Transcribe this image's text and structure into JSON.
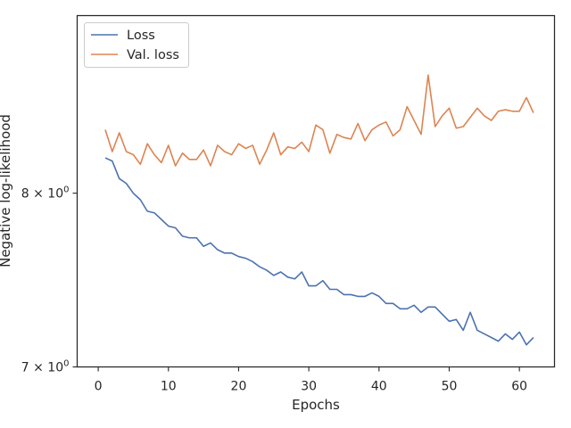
{
  "chart_data": {
    "type": "line",
    "title": "",
    "xlabel": "Epochs",
    "ylabel": "Negative log-likelihood",
    "yscale": "log",
    "xlim": [
      -3,
      65
    ],
    "ylim": [
      7.0,
      9.17
    ],
    "x_ticks": [
      {
        "value": 0,
        "label": "0"
      },
      {
        "value": 10,
        "label": "10"
      },
      {
        "value": 20,
        "label": "20"
      },
      {
        "value": 30,
        "label": "30"
      },
      {
        "value": 40,
        "label": "40"
      },
      {
        "value": 50,
        "label": "50"
      },
      {
        "value": 60,
        "label": "60"
      }
    ],
    "y_ticks": [
      {
        "value": 7,
        "base": "7 × 10",
        "exp": "0"
      },
      {
        "value": 8,
        "base": "8 × 10",
        "exp": "0"
      }
    ],
    "grid": false,
    "legend_position": "upper-left",
    "x": [
      1,
      2,
      3,
      4,
      5,
      6,
      7,
      8,
      9,
      10,
      11,
      12,
      13,
      14,
      15,
      16,
      17,
      18,
      19,
      20,
      21,
      22,
      23,
      24,
      25,
      26,
      27,
      28,
      29,
      30,
      31,
      32,
      33,
      34,
      35,
      36,
      37,
      38,
      39,
      40,
      41,
      42,
      43,
      44,
      45,
      46,
      47,
      48,
      49,
      50,
      51,
      52,
      53,
      54,
      55,
      56,
      57,
      58,
      59,
      60,
      61,
      62
    ],
    "series": [
      {
        "name": "Loss",
        "color": "#4c72b0",
        "values": [
          8.22,
          8.2,
          8.09,
          8.06,
          8.0,
          7.96,
          7.89,
          7.88,
          7.84,
          7.8,
          7.79,
          7.74,
          7.73,
          7.73,
          7.68,
          7.7,
          7.66,
          7.64,
          7.64,
          7.62,
          7.61,
          7.59,
          7.56,
          7.54,
          7.51,
          7.53,
          7.5,
          7.49,
          7.53,
          7.45,
          7.45,
          7.48,
          7.43,
          7.43,
          7.4,
          7.4,
          7.39,
          7.39,
          7.41,
          7.39,
          7.35,
          7.35,
          7.32,
          7.32,
          7.34,
          7.3,
          7.33,
          7.33,
          7.29,
          7.25,
          7.26,
          7.2,
          7.3,
          7.2,
          7.18,
          7.16,
          7.14,
          7.18,
          7.15,
          7.19,
          7.12,
          7.16
        ]
      },
      {
        "name": "Val. loss",
        "color": "#dd8452",
        "values": [
          8.4,
          8.26,
          8.38,
          8.26,
          8.24,
          8.18,
          8.31,
          8.24,
          8.19,
          8.3,
          8.17,
          8.25,
          8.21,
          8.21,
          8.27,
          8.17,
          8.3,
          8.26,
          8.24,
          8.31,
          8.28,
          8.3,
          8.18,
          8.27,
          8.38,
          8.24,
          8.29,
          8.28,
          8.32,
          8.26,
          8.43,
          8.4,
          8.25,
          8.37,
          8.35,
          8.34,
          8.44,
          8.33,
          8.4,
          8.43,
          8.45,
          8.36,
          8.4,
          8.55,
          8.46,
          8.37,
          8.76,
          8.42,
          8.49,
          8.54,
          8.41,
          8.42,
          8.48,
          8.54,
          8.49,
          8.46,
          8.52,
          8.53,
          8.52,
          8.52,
          8.61,
          8.51
        ]
      }
    ]
  }
}
